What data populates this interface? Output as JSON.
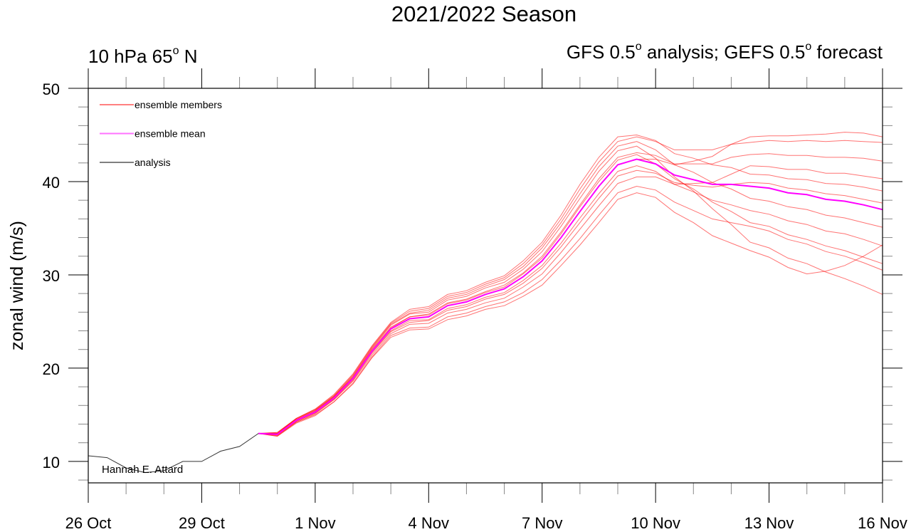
{
  "chart_data": {
    "type": "line",
    "title": "2021/2022 Season",
    "left_subtitle": {
      "pre": "10 hPa 65",
      "sup": "o",
      "post": " N"
    },
    "right_subtitle": {
      "p1": "GFS 0.5",
      "s1": "o",
      "p2": " analysis; GEFS 0.5",
      "s2": "o",
      "p3": " forecast"
    },
    "ylabel": "zonal wind (m/s)",
    "xlabel": "",
    "credit": "Hannah E. Attard",
    "xlim": [
      "2021-10-26T00",
      "2021-11-16T00"
    ],
    "ylim": [
      7.7,
      50
    ],
    "yticks": [
      10,
      20,
      30,
      40,
      50
    ],
    "xticks": [
      {
        "date": "2021-10-26T00",
        "label": "26 Oct"
      },
      {
        "date": "2021-10-29T00",
        "label": "29 Oct"
      },
      {
        "date": "2021-11-01T00",
        "label": "1 Nov"
      },
      {
        "date": "2021-11-04T00",
        "label": "4 Nov"
      },
      {
        "date": "2021-11-07T00",
        "label": "7 Nov"
      },
      {
        "date": "2021-11-10T00",
        "label": "10 Nov"
      },
      {
        "date": "2021-11-13T00",
        "label": "13 Nov"
      },
      {
        "date": "2021-11-16T00",
        "label": "16 Nov"
      }
    ],
    "grid": false,
    "legend": {
      "placement": "top-left",
      "entries": [
        {
          "label": "ensemble members",
          "color": "#ff0000"
        },
        {
          "label": "ensemble mean",
          "color": "#ff00ff"
        },
        {
          "label": "analysis",
          "color": "#000000"
        }
      ]
    },
    "colors": {
      "members": "#ff0000",
      "mean": "#ff00ff",
      "analysis": "#000000"
    },
    "analysis": {
      "x": [
        "2021-10-26T00",
        "2021-10-26T12",
        "2021-10-27T00",
        "2021-10-27T12",
        "2021-10-28T00",
        "2021-10-28T12",
        "2021-10-29T00",
        "2021-10-29T12",
        "2021-10-30T00",
        "2021-10-30T12"
      ],
      "values": [
        10.6,
        10.4,
        9.3,
        8.8,
        9.0,
        10.0,
        10.0,
        11.1,
        11.6,
        13.0
      ]
    },
    "forecast_x": [
      "2021-10-30T12",
      "2021-10-31T00",
      "2021-10-31T12",
      "2021-11-01T00",
      "2021-11-01T12",
      "2021-11-02T00",
      "2021-11-02T12",
      "2021-11-03T00",
      "2021-11-03T12",
      "2021-11-04T00",
      "2021-11-04T12",
      "2021-11-05T00",
      "2021-11-05T12",
      "2021-11-06T00",
      "2021-11-06T12",
      "2021-11-07T00",
      "2021-11-07T12",
      "2021-11-08T00",
      "2021-11-08T12",
      "2021-11-09T00",
      "2021-11-09T12",
      "2021-11-10T00",
      "2021-11-10T12",
      "2021-11-11T00",
      "2021-11-11T12",
      "2021-11-12T00",
      "2021-11-12T12",
      "2021-11-13T00",
      "2021-11-13T12",
      "2021-11-14T00",
      "2021-11-14T12",
      "2021-11-15T00",
      "2021-11-15T12",
      "2021-11-16T00"
    ],
    "ensemble_mean": [
      13.0,
      12.9,
      14.4,
      15.3,
      16.8,
      18.9,
      21.8,
      24.2,
      25.3,
      25.5,
      26.7,
      27.1,
      27.9,
      28.5,
      29.8,
      31.5,
      34.0,
      36.8,
      39.5,
      41.8,
      42.4,
      41.9,
      40.7,
      40.2,
      39.7,
      39.7,
      39.5,
      39.3,
      38.8,
      38.6,
      38.1,
      37.9,
      37.5,
      37.0
    ],
    "ensemble_members": [
      [
        13.0,
        13.1,
        14.6,
        15.6,
        17.1,
        19.3,
        22.3,
        24.8,
        26.1,
        26.4,
        27.7,
        28.1,
        29.0,
        29.7,
        31.2,
        33.2,
        36.0,
        39.2,
        42.1,
        44.3,
        44.8,
        44.3,
        43.4,
        43.4,
        43.4,
        44.0,
        44.2,
        44.4,
        44.3,
        44.4,
        44.3,
        44.4,
        44.3,
        44.2
      ],
      [
        13.0,
        13.0,
        14.5,
        15.5,
        17.0,
        19.1,
        22.1,
        24.6,
        25.8,
        26.0,
        27.3,
        27.7,
        28.6,
        29.2,
        30.6,
        32.5,
        35.2,
        38.2,
        41.1,
        43.3,
        43.8,
        42.5,
        40.5,
        39.0,
        37.1,
        35.4,
        33.5,
        32.9,
        31.8,
        31.2,
        30.3,
        29.6,
        28.8,
        27.9
      ],
      [
        13.0,
        12.8,
        14.2,
        15.1,
        16.6,
        18.6,
        21.4,
        23.7,
        24.7,
        24.8,
        25.9,
        26.3,
        27.0,
        27.5,
        28.7,
        30.1,
        32.4,
        34.9,
        37.4,
        39.8,
        40.5,
        40.5,
        39.7,
        39.8,
        39.9,
        40.8,
        41.7,
        41.6,
        41.3,
        41.3,
        40.9,
        40.9,
        40.6,
        40.3
      ],
      [
        13.0,
        13.0,
        14.5,
        15.4,
        16.9,
        19.0,
        22.0,
        24.4,
        25.5,
        25.8,
        27.0,
        27.4,
        28.2,
        28.9,
        30.2,
        32.0,
        34.6,
        37.5,
        40.3,
        42.6,
        43.1,
        42.8,
        41.9,
        41.9,
        41.9,
        42.6,
        42.9,
        43.0,
        42.8,
        42.8,
        42.6,
        42.6,
        42.5,
        42.2
      ],
      [
        13.0,
        12.9,
        14.3,
        15.2,
        16.7,
        18.8,
        21.7,
        24.0,
        25.1,
        25.2,
        26.4,
        26.8,
        27.6,
        28.1,
        29.4,
        31.0,
        33.4,
        36.1,
        38.7,
        41.1,
        41.7,
        41.1,
        39.7,
        38.9,
        38.0,
        37.5,
        36.9,
        36.5,
        35.8,
        35.4,
        34.7,
        34.4,
        33.8,
        33.1
      ],
      [
        13.0,
        13.1,
        14.6,
        15.6,
        17.2,
        19.4,
        22.4,
        24.9,
        26.3,
        26.6,
        27.9,
        28.3,
        29.2,
        29.9,
        31.5,
        33.5,
        36.4,
        39.7,
        42.6,
        44.8,
        45.0,
        44.4,
        43.0,
        42.5,
        41.8,
        41.5,
        40.8,
        40.7,
        40.3,
        40.2,
        39.8,
        39.7,
        39.4,
        39.0
      ],
      [
        13.0,
        12.7,
        14.2,
        15.0,
        16.4,
        18.4,
        21.2,
        23.5,
        24.3,
        24.4,
        25.5,
        25.9,
        26.6,
        27.1,
        28.1,
        29.5,
        31.6,
        33.9,
        36.4,
        38.8,
        39.5,
        39.1,
        37.8,
        36.9,
        36.0,
        35.6,
        35.2,
        34.7,
        33.8,
        33.3,
        32.5,
        32.0,
        31.3,
        30.5
      ],
      [
        13.0,
        12.9,
        14.4,
        15.3,
        16.8,
        18.9,
        21.8,
        24.2,
        25.3,
        25.5,
        26.7,
        27.1,
        27.9,
        28.5,
        29.8,
        31.5,
        34.0,
        36.8,
        39.5,
        41.8,
        42.4,
        42.4,
        41.8,
        42.2,
        42.7,
        44.0,
        44.8,
        44.9,
        44.9,
        45.0,
        45.1,
        45.3,
        45.2,
        44.8
      ],
      [
        13.0,
        13.0,
        14.6,
        15.5,
        17.0,
        19.2,
        22.2,
        24.7,
        25.9,
        26.2,
        27.5,
        27.9,
        28.8,
        29.5,
        30.9,
        32.9,
        35.6,
        38.7,
        41.6,
        43.8,
        44.3,
        43.4,
        41.8,
        41.0,
        39.9,
        39.2,
        38.2,
        37.9,
        37.3,
        37.0,
        36.4,
        36.1,
        35.6,
        35.1
      ],
      [
        13.0,
        12.8,
        14.3,
        15.2,
        16.7,
        18.7,
        21.6,
        23.9,
        24.9,
        25.1,
        26.2,
        26.6,
        27.4,
        27.9,
        29.1,
        30.7,
        33.0,
        35.6,
        38.2,
        40.6,
        41.2,
        40.9,
        39.9,
        39.6,
        39.4,
        39.7,
        39.9,
        39.8,
        39.3,
        39.1,
        38.7,
        38.5,
        38.1,
        37.7
      ],
      [
        13.0,
        12.7,
        14.1,
        14.9,
        16.4,
        18.3,
        21.1,
        23.3,
        24.1,
        24.2,
        25.2,
        25.6,
        26.3,
        26.7,
        27.7,
        28.9,
        31.0,
        33.2,
        35.6,
        38.1,
        38.8,
        38.3,
        36.7,
        35.6,
        34.2,
        33.4,
        32.6,
        31.9,
        30.8,
        30.1,
        30.4,
        31.0,
        32.0,
        33.2
      ],
      [
        13.0,
        12.9,
        14.4,
        15.4,
        16.9,
        19.0,
        21.9,
        24.3,
        25.5,
        25.7,
        26.9,
        27.3,
        28.1,
        28.7,
        30.1,
        31.8,
        34.4,
        37.3,
        40.0,
        42.3,
        42.9,
        41.9,
        40.3,
        39.2,
        37.8,
        36.8,
        35.6,
        35.2,
        34.3,
        33.8,
        33.1,
        32.6,
        31.9,
        31.2
      ]
    ]
  }
}
